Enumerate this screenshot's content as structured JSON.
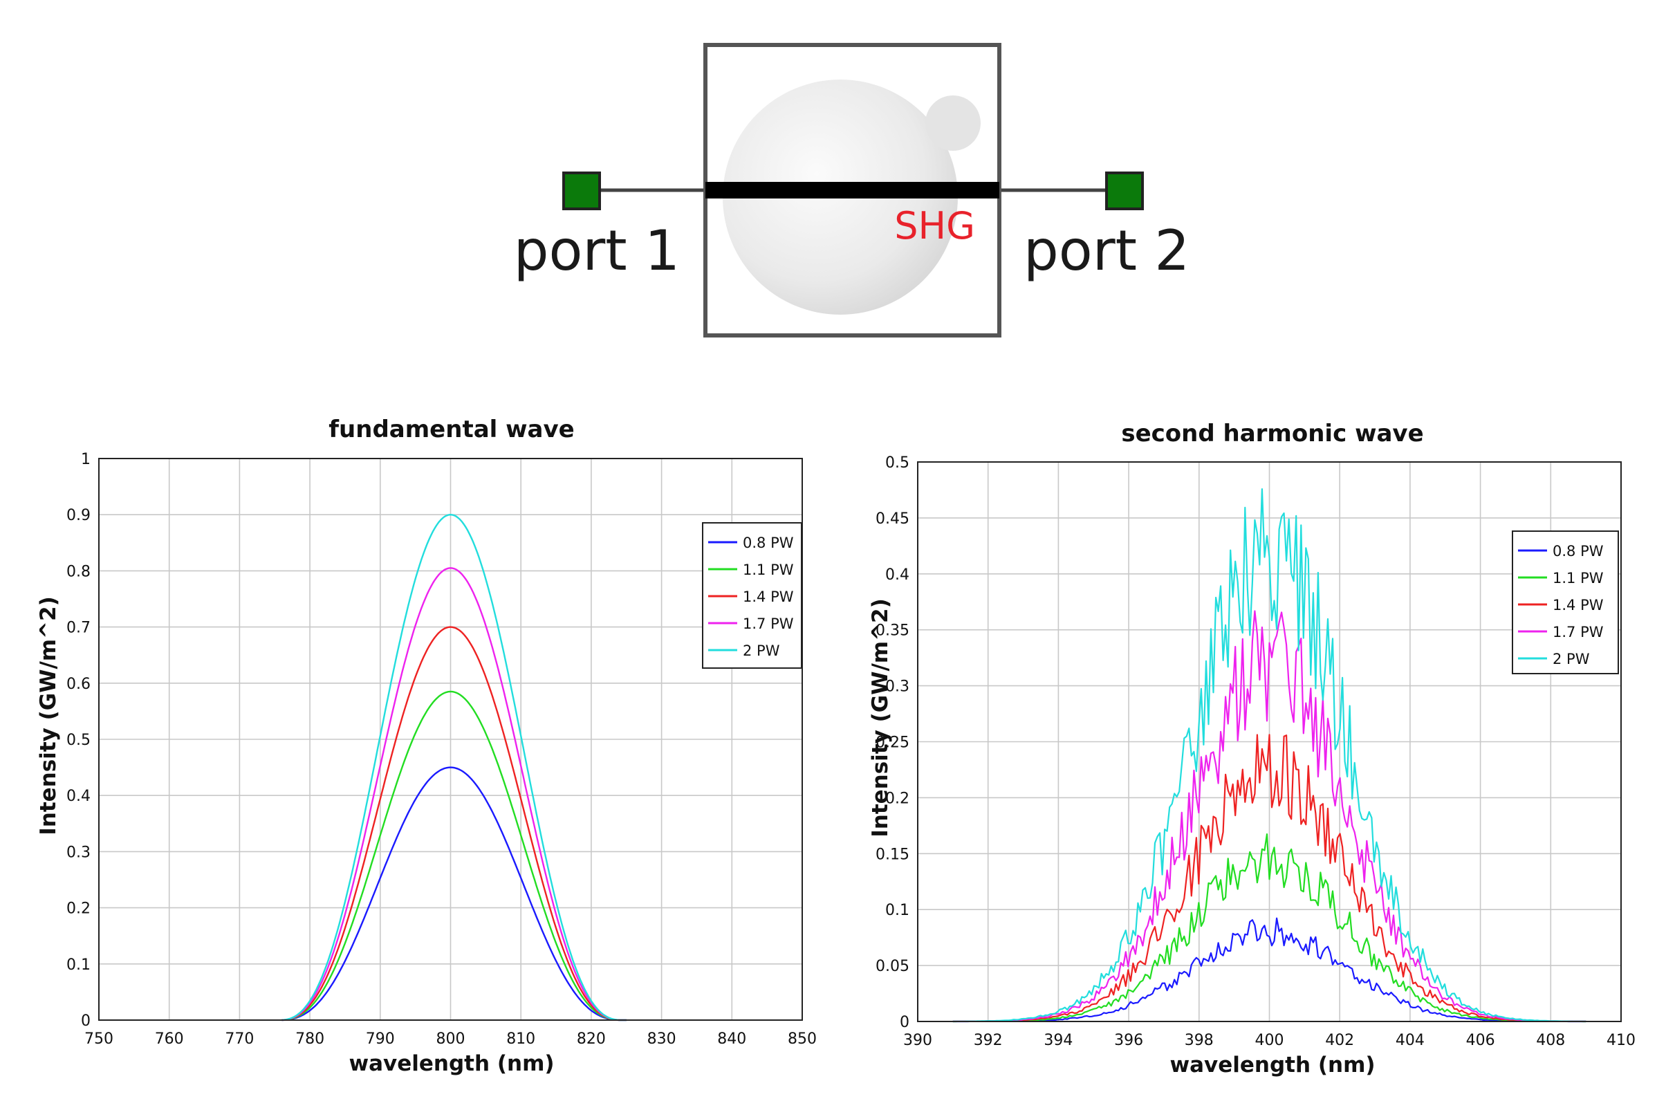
{
  "diagram": {
    "block_label": "SHG",
    "port_left": "port 1",
    "port_right": "port 2",
    "colors": {
      "port": "#0b7a0b",
      "block_label": "#e8222b",
      "beam": "#000000"
    }
  },
  "chart_data": [
    {
      "type": "line",
      "title": "fundamental wave",
      "xlabel": "wavelength (nm)",
      "ylabel": "Intensity (GW/m^2)",
      "xlim": [
        750,
        850
      ],
      "ylim": [
        0,
        1
      ],
      "xticks": [
        "750",
        "760",
        "770",
        "780",
        "790",
        "800",
        "810",
        "820",
        "830",
        "840",
        "850"
      ],
      "yticks": [
        "0",
        "0.1",
        "0.2",
        "0.3",
        "0.4",
        "0.5",
        "0.6",
        "0.7",
        "0.8",
        "0.9",
        "1"
      ],
      "grid": true,
      "legend": "top-right",
      "center": 800,
      "support": [
        776,
        825
      ],
      "series": [
        {
          "name": "0.8 PW",
          "peak": 0.45,
          "color": "#1a1aff"
        },
        {
          "name": "1.1 PW",
          "peak": 0.585,
          "color": "#22dd22"
        },
        {
          "name": "1.4 PW",
          "peak": 0.7,
          "color": "#ee2222"
        },
        {
          "name": "1.7 PW",
          "peak": 0.805,
          "color": "#ee22ee"
        },
        {
          "name": "2 PW",
          "peak": 0.9,
          "color": "#22dddd"
        }
      ]
    },
    {
      "type": "line",
      "title": "second harmonic wave",
      "xlabel": "wavelength (nm)",
      "ylabel": "Intensity (GW/m^2)",
      "xlim": [
        390,
        410
      ],
      "ylim": [
        0,
        0.5
      ],
      "xticks": [
        "390",
        "392",
        "394",
        "396",
        "398",
        "400",
        "402",
        "404",
        "406",
        "408",
        "410"
      ],
      "yticks": [
        "0",
        "0.05",
        "0.1",
        "0.15",
        "0.2",
        "0.25",
        "0.3",
        "0.35",
        "0.4",
        "0.45",
        "0.5"
      ],
      "grid": true,
      "legend": "top-right",
      "center": 400,
      "support": [
        391,
        409
      ],
      "series": [
        {
          "name": "0.8 PW",
          "peak": 0.085,
          "color": "#1a1aff"
        },
        {
          "name": "1.1 PW",
          "peak": 0.155,
          "color": "#22dd22"
        },
        {
          "name": "1.4 PW",
          "peak": 0.24,
          "color": "#ee2222"
        },
        {
          "name": "1.7 PW",
          "peak": 0.34,
          "color": "#ee22ee"
        },
        {
          "name": "2 PW",
          "peak": 0.45,
          "color": "#22dddd"
        }
      ]
    }
  ]
}
